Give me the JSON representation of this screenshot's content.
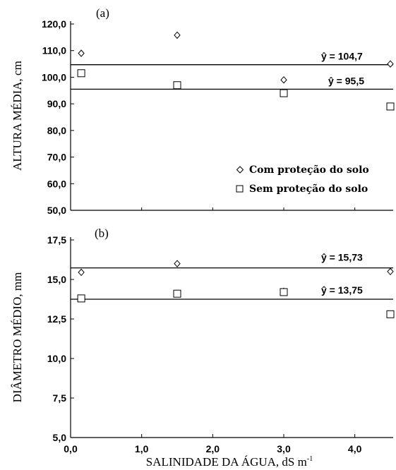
{
  "chart_data": [
    {
      "type": "scatter",
      "panel_label": "(a)",
      "ylabel": "ALTURA MÉDIA, cm",
      "xlabel": "",
      "ylim": [
        50,
        120
      ],
      "xlim": [
        0,
        4.5
      ],
      "yticks": [
        50,
        60,
        70,
        80,
        90,
        100,
        110,
        120
      ],
      "ytick_labels": [
        "50,0",
        "60,0",
        "70,0",
        "80,0",
        "90,0",
        "100,0",
        "110,0",
        "120,0"
      ],
      "series": [
        {
          "name": "Com proteção do solo",
          "marker": "diamond",
          "x": [
            0.15,
            1.5,
            3.0,
            4.5
          ],
          "y": [
            109,
            115.8,
            99,
            105
          ]
        },
        {
          "name": "Sem proteção do solo",
          "marker": "square",
          "x": [
            0.15,
            1.5,
            3.0,
            4.5
          ],
          "y": [
            101.5,
            97,
            94,
            89
          ]
        }
      ],
      "fit_lines": [
        {
          "label": "ŷ = 104,7",
          "y": 104.7
        },
        {
          "label": "ŷ = 95,5",
          "y": 95.5
        }
      ],
      "legend_position": "bottom-right"
    },
    {
      "type": "scatter",
      "panel_label": "(b)",
      "ylabel": "DIÂMETRO MÉDIO, mm",
      "xlabel": "SALINIDADE DA ÁGUA, dS m",
      "xlabel_superscript": "-1",
      "ylim": [
        5,
        17.5
      ],
      "xlim": [
        0,
        4.5
      ],
      "yticks": [
        5,
        7.5,
        10,
        12.5,
        15,
        17.5
      ],
      "ytick_labels": [
        "5,0",
        "7,5",
        "10,0",
        "12,5",
        "15,0",
        "17,5"
      ],
      "xticks": [
        0,
        1,
        2,
        3,
        4
      ],
      "xtick_labels": [
        "0,0",
        "1,0",
        "2,0",
        "3,0",
        "4,0"
      ],
      "series": [
        {
          "name": "Com proteção do solo",
          "marker": "diamond",
          "x": [
            0.15,
            1.5,
            3.0,
            4.5
          ],
          "y": [
            15.45,
            16.0,
            14.25,
            15.5
          ]
        },
        {
          "name": "Sem proteção do solo",
          "marker": "square",
          "x": [
            0.15,
            1.5,
            3.0,
            4.5
          ],
          "y": [
            13.8,
            14.1,
            14.2,
            12.8
          ]
        }
      ],
      "fit_lines": [
        {
          "label": "ŷ =  15,73",
          "y": 15.73
        },
        {
          "label": "ŷ = 13,75",
          "y": 13.75
        }
      ]
    }
  ]
}
